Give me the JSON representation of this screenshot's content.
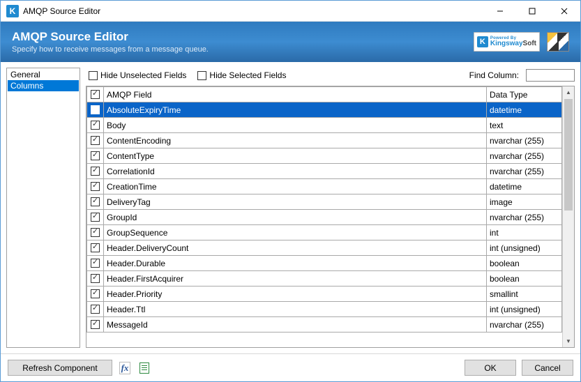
{
  "window": {
    "title": "AMQP Source Editor",
    "icon_letter": "K"
  },
  "banner": {
    "title": "AMQP Source Editor",
    "subtitle": "Specify how to receive messages from a message queue.",
    "logo_powered_by": "Powered By",
    "logo_brand_1": "Kingsway",
    "logo_brand_2": "Soft"
  },
  "sidebar": {
    "items": [
      {
        "label": "General",
        "selected": false
      },
      {
        "label": "Columns",
        "selected": true
      }
    ]
  },
  "toolbar": {
    "hide_unselected_label": "Hide Unselected Fields",
    "hide_unselected_checked": false,
    "hide_selected_label": "Hide Selected Fields",
    "hide_selected_checked": false,
    "find_label": "Find Column:",
    "find_value": ""
  },
  "grid": {
    "header_checked": true,
    "columns": {
      "name": "AMQP Field",
      "type": "Data Type"
    },
    "selected_index": 0,
    "rows": [
      {
        "checked": true,
        "name": "AbsoluteExpiryTime",
        "type": "datetime"
      },
      {
        "checked": true,
        "name": "Body",
        "type": "text"
      },
      {
        "checked": true,
        "name": "ContentEncoding",
        "type": "nvarchar (255)"
      },
      {
        "checked": true,
        "name": "ContentType",
        "type": "nvarchar (255)"
      },
      {
        "checked": true,
        "name": "CorrelationId",
        "type": "nvarchar (255)"
      },
      {
        "checked": true,
        "name": "CreationTime",
        "type": "datetime"
      },
      {
        "checked": true,
        "name": "DeliveryTag",
        "type": "image"
      },
      {
        "checked": true,
        "name": "GroupId",
        "type": "nvarchar (255)"
      },
      {
        "checked": true,
        "name": "GroupSequence",
        "type": "int"
      },
      {
        "checked": true,
        "name": "Header.DeliveryCount",
        "type": "int (unsigned)"
      },
      {
        "checked": true,
        "name": "Header.Durable",
        "type": "boolean"
      },
      {
        "checked": true,
        "name": "Header.FirstAcquirer",
        "type": "boolean"
      },
      {
        "checked": true,
        "name": "Header.Priority",
        "type": "smallint"
      },
      {
        "checked": true,
        "name": "Header.Ttl",
        "type": "int (unsigned)"
      },
      {
        "checked": true,
        "name": "MessageId",
        "type": "nvarchar (255)"
      }
    ]
  },
  "footer": {
    "refresh_label": "Refresh Component",
    "ok_label": "OK",
    "cancel_label": "Cancel"
  },
  "colors": {
    "selection": "#0a64c8",
    "accent": "#0078d7",
    "banner_top": "#2f7bbf",
    "banner_bottom": "#2a6aa8",
    "border": "#a0a0a0"
  }
}
